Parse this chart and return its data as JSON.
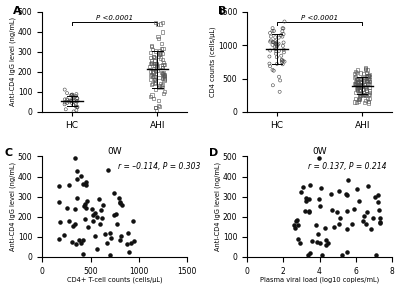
{
  "panel_A": {
    "label": "A",
    "ylabel": "Anti-CD4 IgG level (ng/mL)",
    "ylim": [
      0,
      500
    ],
    "yticks": [
      0,
      100,
      200,
      300,
      400,
      500
    ],
    "groups": [
      "HC",
      "AHI"
    ],
    "HC_mean": 52,
    "HC_sd": 25,
    "HC_n": 35,
    "AHI_mean": 210,
    "AHI_sd": 95,
    "AHI_n": 100,
    "ptext": "P <0.0001",
    "HC_marker": "o",
    "AHI_marker": "s"
  },
  "panel_B": {
    "label": "B",
    "ylabel": "CD4 counts (cells/μL)",
    "ylim": [
      0,
      1500
    ],
    "yticks": [
      0,
      500,
      1000,
      1500
    ],
    "groups": [
      "HC",
      "AHI"
    ],
    "HC_mean": 940,
    "HC_sd": 200,
    "HC_n": 55,
    "AHI_mean": 390,
    "AHI_sd": 130,
    "AHI_n": 110,
    "ptext": "P <0.0001",
    "HC_marker": "o",
    "AHI_marker": "s"
  },
  "panel_C": {
    "label": "C",
    "title": "0W",
    "ylabel": "Anti-CD4 IgG level (ng/mL)",
    "xlabel": "CD4+ T-cell counts (cells/μL)",
    "xlim": [
      0,
      1500
    ],
    "xticks": [
      0,
      500,
      1000,
      1500
    ],
    "ylim": [
      0,
      500
    ],
    "yticks": [
      0,
      100,
      200,
      300,
      400,
      500
    ],
    "annotation": "r = –0.114, P = 0.303",
    "n": 65
  },
  "panel_D": {
    "label": "D",
    "title": "0W",
    "ylabel": "Anti-CD4 IgG level (ng/mL)",
    "xlabel": "Plasma viral load (log10 copies/mL)",
    "xlim": [
      0,
      8
    ],
    "xticks": [
      0,
      2,
      4,
      6,
      8
    ],
    "ylim": [
      0,
      500
    ],
    "yticks": [
      0,
      100,
      200,
      300,
      400,
      500
    ],
    "annotation": "r = 0.137, P = 0.214",
    "n": 65
  }
}
